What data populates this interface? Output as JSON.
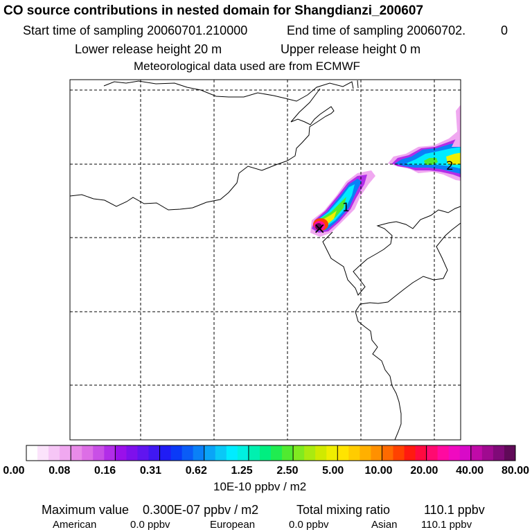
{
  "header": {
    "title": "CO  source contributions in nested domain for Shangdianzi_200607",
    "start_sampling": "Start time of sampling 20060701.210000",
    "end_sampling": "End time of sampling 20060702.",
    "end_sampling_suffix": "0",
    "lower_release": "Lower release height   20 m",
    "upper_release": "Upper release height    0 m",
    "met_data": "Meteorological data used are from ECMWF"
  },
  "map": {
    "markers": [
      {
        "symbol": "×",
        "label": "receptor-site"
      },
      {
        "symbol": "1",
        "label": "release-point-1"
      },
      {
        "symbol": "2",
        "label": "release-point-2"
      }
    ]
  },
  "colorbar": {
    "colors": [
      "#ffffff",
      "#fbe3fb",
      "#f6c6f6",
      "#f0a8f0",
      "#e98be9",
      "#dd6ee6",
      "#c94fe6",
      "#b22de8",
      "#9a10ea",
      "#7e10ec",
      "#6015ef",
      "#4018f2",
      "#201cf5",
      "#0a3af7",
      "#0a5cf7",
      "#0a80f7",
      "#0aa4f7",
      "#0ac8f7",
      "#00ecff",
      "#00f0e0",
      "#00f0b0",
      "#00ee80",
      "#20ec50",
      "#50ea30",
      "#80ea20",
      "#aaea10",
      "#d0ea00",
      "#f0ee00",
      "#ffe400",
      "#ffcc00",
      "#ffb000",
      "#ff9000",
      "#ff6a00",
      "#ff4200",
      "#ff1a10",
      "#ff0a40",
      "#ff0a70",
      "#ff0aa0",
      "#f00ac0",
      "#d80ac8",
      "#c00aa8",
      "#a00a90",
      "#800a78",
      "#600a58"
    ],
    "tick_labels": [
      "0.00",
      "0.08",
      "0.16",
      "0.31",
      "0.62",
      "1.25",
      "2.50",
      "5.00",
      "10.00",
      "20.00",
      "40.00",
      "80.00"
    ],
    "unit": "10E-10 ppbv / m2"
  },
  "footer": {
    "max_label": "Maximum value",
    "max_value": "0.300E-07 ppbv / m2",
    "total_label": "Total mixing ratio",
    "total_value": "110.1 ppbv",
    "american_label": "American",
    "american_value": "0.0 ppbv",
    "european_label": "European",
    "european_value": "0.0 ppbv",
    "asian_label": "Asian",
    "asian_value": "110.1 ppbv"
  }
}
